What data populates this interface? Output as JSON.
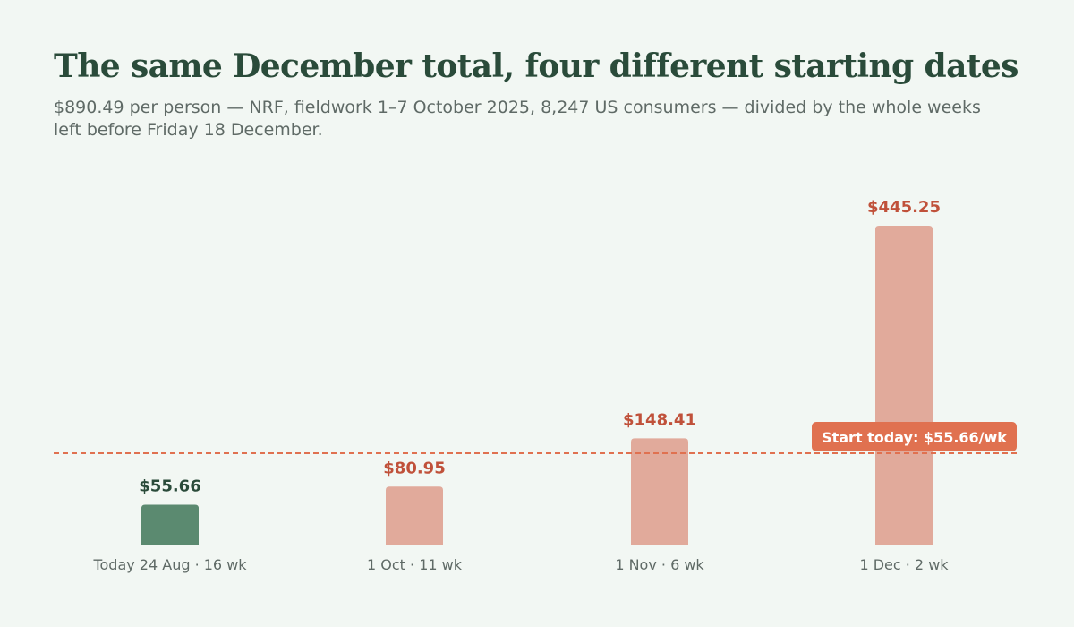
{
  "header": {
    "title": "The same December total, four different starting dates",
    "subtitle": "$890.49 per person — NRF, fieldwork 1–7 October 2025, 8,247 US consumers — divided by the whole weeks left before Friday 18 December."
  },
  "colors": {
    "background": "#f2f7f3",
    "title": "#2a4b3a",
    "highlight_bar": "#5b8a70",
    "other_bar": "#e1aa9b",
    "other_value_label": "#c0513a",
    "highlight_value_label": "#2a4b3a",
    "reference_line": "#e07150",
    "reference_badge": "#e07150"
  },
  "chart_data": {
    "type": "bar",
    "categories": [
      "Today 24 Aug · 16 wk",
      "1 Oct · 11 wk",
      "1 Nov · 6 wk",
      "1 Dec · 2 wk"
    ],
    "values": [
      55.66,
      80.95,
      148.41,
      445.25
    ],
    "value_labels": [
      "$55.66",
      "$80.95",
      "$148.41",
      "$445.25"
    ],
    "highlight_index": 0,
    "ylim": [
      0,
      500
    ],
    "grid": false,
    "reference_line": {
      "value": 55.66,
      "label": "Start today: $55.66/wk",
      "style": "dashed"
    }
  }
}
